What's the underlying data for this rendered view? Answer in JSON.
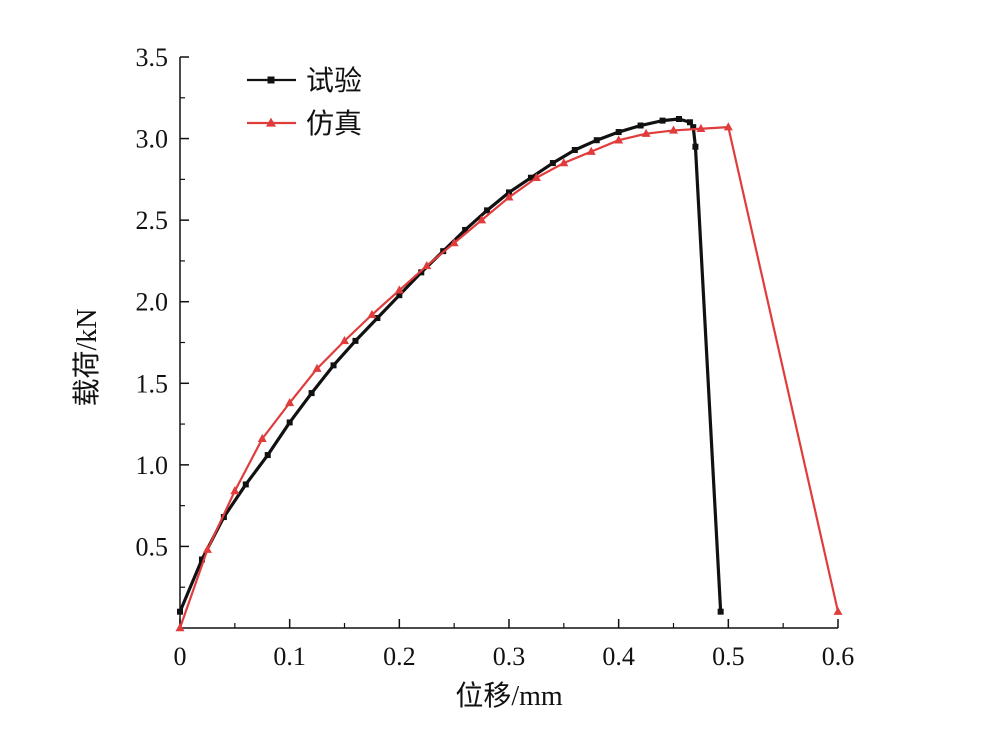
{
  "chart_data": {
    "type": "line",
    "xlabel": "位移/mm",
    "ylabel": "载荷/kN",
    "xlim": [
      0,
      0.6
    ],
    "ylim": [
      0,
      3.5
    ],
    "x_ticks": [
      "0",
      "0.1",
      "0.2",
      "0.3",
      "0.4",
      "0.5",
      "0.6"
    ],
    "y_ticks": [
      "0.5",
      "1.0",
      "1.5",
      "2.0",
      "2.5",
      "3.0",
      "3.5"
    ],
    "grid": false,
    "legend_position": "top-left",
    "series": [
      {
        "name": "试验",
        "color": "#111111",
        "marker": "square",
        "points": [
          [
            0,
            0.1
          ],
          [
            0.02,
            0.42
          ],
          [
            0.04,
            0.68
          ],
          [
            0.06,
            0.88
          ],
          [
            0.08,
            1.06
          ],
          [
            0.1,
            1.26
          ],
          [
            0.12,
            1.44
          ],
          [
            0.14,
            1.61
          ],
          [
            0.16,
            1.76
          ],
          [
            0.18,
            1.9
          ],
          [
            0.2,
            2.04
          ],
          [
            0.22,
            2.18
          ],
          [
            0.24,
            2.31
          ],
          [
            0.26,
            2.44
          ],
          [
            0.28,
            2.56
          ],
          [
            0.3,
            2.67
          ],
          [
            0.32,
            2.76
          ],
          [
            0.34,
            2.85
          ],
          [
            0.36,
            2.93
          ],
          [
            0.38,
            2.99
          ],
          [
            0.4,
            3.04
          ],
          [
            0.42,
            3.08
          ],
          [
            0.44,
            3.11
          ],
          [
            0.455,
            3.12
          ],
          [
            0.465,
            3.1
          ],
          [
            0.468,
            3.07
          ],
          [
            0.47,
            2.95
          ],
          [
            0.493,
            0.1
          ]
        ]
      },
      {
        "name": "仿真",
        "color": "#e03c3c",
        "marker": "triangle",
        "points": [
          [
            0,
            0
          ],
          [
            0.025,
            0.48
          ],
          [
            0.05,
            0.84
          ],
          [
            0.075,
            1.16
          ],
          [
            0.1,
            1.38
          ],
          [
            0.125,
            1.59
          ],
          [
            0.15,
            1.76
          ],
          [
            0.175,
            1.92
          ],
          [
            0.2,
            2.07
          ],
          [
            0.225,
            2.22
          ],
          [
            0.25,
            2.36
          ],
          [
            0.275,
            2.5
          ],
          [
            0.3,
            2.64
          ],
          [
            0.325,
            2.76
          ],
          [
            0.35,
            2.85
          ],
          [
            0.375,
            2.92
          ],
          [
            0.4,
            2.99
          ],
          [
            0.425,
            3.03
          ],
          [
            0.45,
            3.05
          ],
          [
            0.475,
            3.06
          ],
          [
            0.5,
            3.07
          ],
          [
            0.6,
            0.1
          ]
        ]
      }
    ]
  }
}
